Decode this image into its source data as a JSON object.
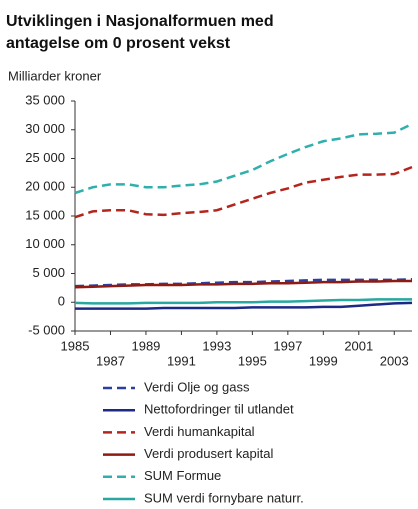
{
  "chart_data": {
    "type": "line",
    "title_lines": [
      "Utviklingen i Nasjonalformuen med",
      "antagelse om 0 prosent vekst"
    ],
    "y_label": "Milliarder kroner",
    "x": [
      1985,
      1986,
      1987,
      1988,
      1989,
      1990,
      1991,
      1992,
      1993,
      1994,
      1995,
      1996,
      1997,
      1998,
      1999,
      2000,
      2001,
      2002,
      2003,
      2004
    ],
    "xlim": [
      1985,
      2004
    ],
    "xticks": [
      1985,
      1987,
      1989,
      1991,
      1993,
      1995,
      1997,
      1999,
      2001,
      2003
    ],
    "ylim": [
      -5000,
      35000
    ],
    "yticks": [
      {
        "value": -5000,
        "label": "-5 000"
      },
      0,
      {
        "value": 5000,
        "label": "5 000"
      },
      {
        "value": 10000,
        "label": "10 000"
      },
      {
        "value": 15000,
        "label": "15 000"
      },
      {
        "value": 20000,
        "label": "20 000"
      },
      {
        "value": 25000,
        "label": "25 000"
      },
      {
        "value": 30000,
        "label": "30 000"
      },
      {
        "value": 35000,
        "label": "35 000"
      }
    ],
    "grid": false,
    "series": [
      {
        "name": "Verdi Olje og gass",
        "color": "#2b3f9e",
        "dash": true,
        "values": [
          2800,
          2900,
          3000,
          3100,
          3100,
          3200,
          3200,
          3300,
          3400,
          3500,
          3500,
          3600,
          3700,
          3800,
          3900,
          3900,
          3900,
          3900,
          3900,
          4000
        ]
      },
      {
        "name": "Nettofordringer til utlandet",
        "color": "#1c2a86",
        "dash": false,
        "values": [
          -1100,
          -1100,
          -1100,
          -1100,
          -1100,
          -1000,
          -1000,
          -1000,
          -1000,
          -1000,
          -900,
          -900,
          -900,
          -900,
          -800,
          -800,
          -600,
          -400,
          -200,
          -100
        ]
      },
      {
        "name": "Verdi humankapital",
        "color": "#b3261e",
        "dash": true,
        "values": [
          14800,
          15800,
          16000,
          16000,
          15300,
          15200,
          15500,
          15700,
          16000,
          17000,
          18000,
          19000,
          19800,
          20800,
          21300,
          21800,
          22200,
          22200,
          22300,
          23500
        ]
      },
      {
        "name": "Verdi produsert kapital",
        "color": "#8e1a14",
        "dash": false,
        "values": [
          2600,
          2700,
          2800,
          2900,
          3000,
          3000,
          3000,
          3100,
          3100,
          3200,
          3200,
          3300,
          3300,
          3400,
          3500,
          3500,
          3600,
          3600,
          3700,
          3700
        ]
      },
      {
        "name": "SUM Formue",
        "color": "#2fb0ad",
        "dash": true,
        "values": [
          19000,
          20000,
          20500,
          20500,
          20000,
          20000,
          20300,
          20500,
          21000,
          22000,
          23000,
          24500,
          25800,
          27000,
          28000,
          28500,
          29200,
          29300,
          29500,
          31000
        ]
      },
      {
        "name": "SUM verdi fornybare naturr.",
        "color": "#28a8a0",
        "dash": false,
        "values": [
          -100,
          -200,
          -200,
          -200,
          -100,
          -100,
          -100,
          -100,
          0,
          0,
          0,
          100,
          100,
          200,
          300,
          400,
          400,
          500,
          500,
          500
        ]
      }
    ]
  }
}
